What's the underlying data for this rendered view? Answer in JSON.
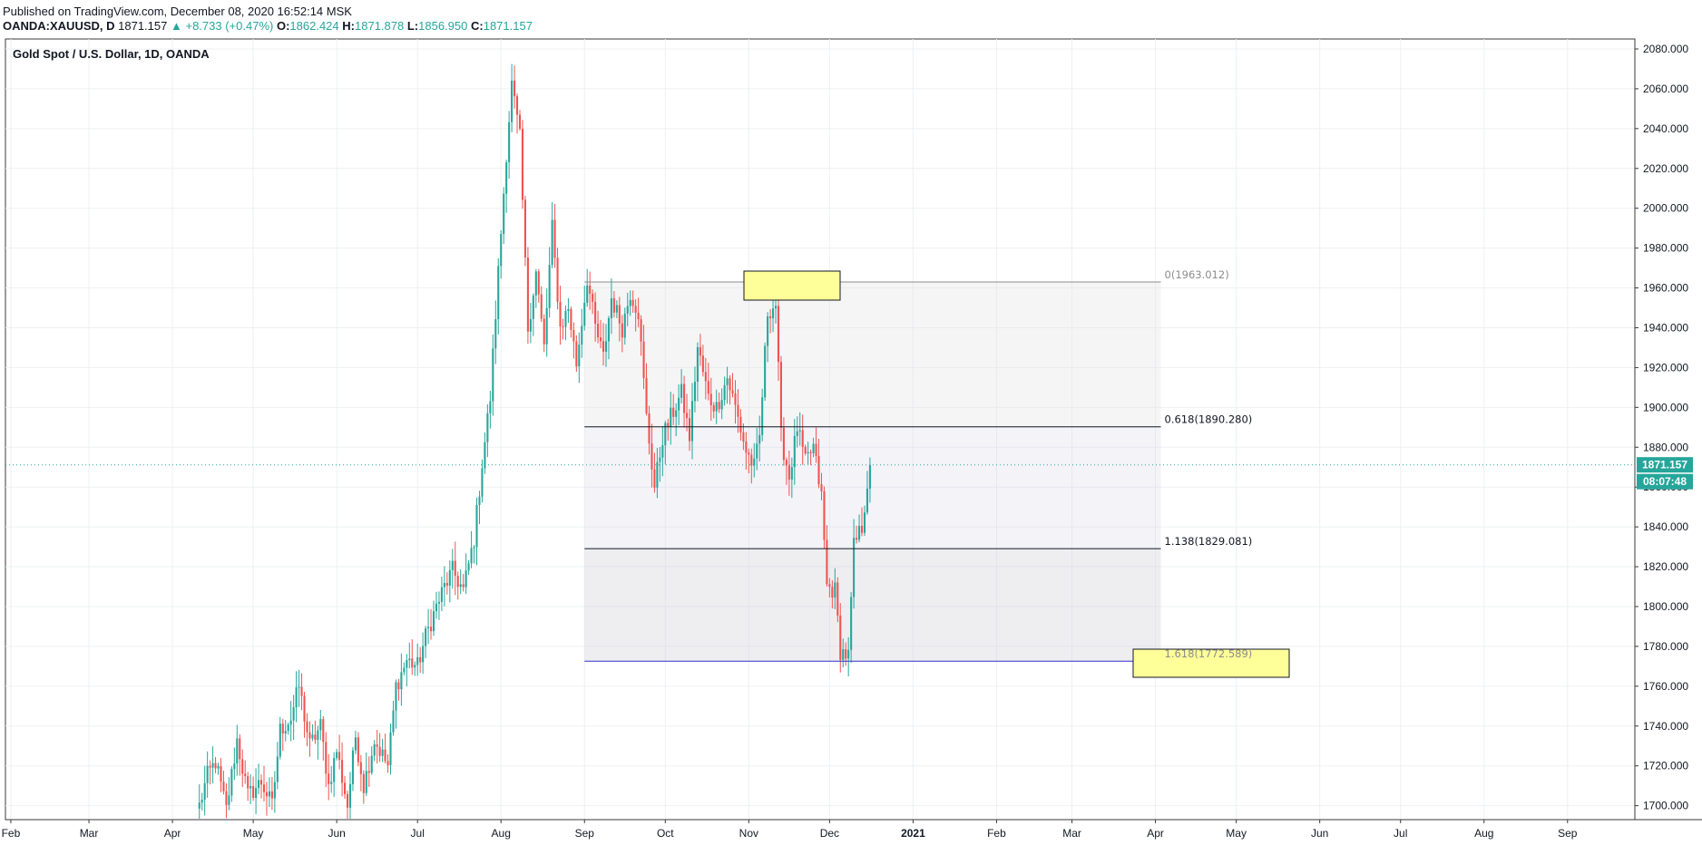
{
  "header": {
    "published": "Published on TradingView.com, December 08, 2020 16:52:14 MSK",
    "symbol": "OANDA:XAUUSD, D",
    "last": "1871.157",
    "arrow": "▲",
    "change": "+8.733 (+0.47%)",
    "open_label": "O:",
    "open": "1862.424",
    "high_label": "H:",
    "high": "1871.878",
    "low_label": "L:",
    "low": "1856.950",
    "close_label": "C:",
    "close": "1871.157"
  },
  "price_badge": "1871.157",
  "countdown_badge": "08:07:48",
  "colors": {
    "up": "#26a69a",
    "down": "#ef5350",
    "grid": "#eef0f3",
    "fib_blue": "#3030c8",
    "highlight": "#ffff99"
  },
  "chart_data": {
    "type": "candlestick",
    "title": "Gold Spot / U.S. Dollar, 1D, OANDA",
    "y_ticks": [
      "2080.000",
      "2060.000",
      "2040.000",
      "2020.000",
      "2000.000",
      "1980.000",
      "1960.000",
      "1940.000",
      "1920.000",
      "1900.000",
      "1880.000",
      "1860.000",
      "1840.000",
      "1820.000",
      "1800.000",
      "1780.000",
      "1760.000",
      "1740.000",
      "1720.000",
      "1700.000"
    ],
    "ylim": [
      1693,
      2085
    ],
    "x_ticks": [
      {
        "label": "Feb",
        "day": 0
      },
      {
        "label": "Mar",
        "day": 29
      },
      {
        "label": "Apr",
        "day": 60
      },
      {
        "label": "May",
        "day": 90
      },
      {
        "label": "Jun",
        "day": 121
      },
      {
        "label": "Jul",
        "day": 151
      },
      {
        "label": "Aug",
        "day": 182
      },
      {
        "label": "Sep",
        "day": 213
      },
      {
        "label": "Oct",
        "day": 243
      },
      {
        "label": "Nov",
        "day": 274
      },
      {
        "label": "Dec",
        "day": 304
      },
      {
        "label": "2021",
        "day": 335
      },
      {
        "label": "Feb",
        "day": 366
      },
      {
        "label": "Mar",
        "day": 394
      },
      {
        "label": "Apr",
        "day": 425
      },
      {
        "label": "May",
        "day": 455
      },
      {
        "label": "Jun",
        "day": 486
      },
      {
        "label": "Jul",
        "day": 516
      },
      {
        "label": "Aug",
        "day": 547
      },
      {
        "label": "Sep",
        "day": 578
      }
    ],
    "xlim_days": [
      -2,
      603
    ],
    "candle_anchors": [
      {
        "day": 70,
        "price": 1700
      },
      {
        "day": 73,
        "price": 1715
      },
      {
        "day": 76,
        "price": 1722
      },
      {
        "day": 80,
        "price": 1698
      },
      {
        "day": 84,
        "price": 1733
      },
      {
        "day": 88,
        "price": 1705
      },
      {
        "day": 93,
        "price": 1712
      },
      {
        "day": 97,
        "price": 1700
      },
      {
        "day": 100,
        "price": 1738
      },
      {
        "day": 104,
        "price": 1744
      },
      {
        "day": 107,
        "price": 1760
      },
      {
        "day": 111,
        "price": 1730
      },
      {
        "day": 115,
        "price": 1740
      },
      {
        "day": 118,
        "price": 1710
      },
      {
        "day": 121,
        "price": 1728
      },
      {
        "day": 125,
        "price": 1700
      },
      {
        "day": 128,
        "price": 1735
      },
      {
        "day": 131,
        "price": 1710
      },
      {
        "day": 135,
        "price": 1733
      },
      {
        "day": 140,
        "price": 1720
      },
      {
        "day": 143,
        "price": 1760
      },
      {
        "day": 147,
        "price": 1773
      },
      {
        "day": 151,
        "price": 1770
      },
      {
        "day": 154,
        "price": 1785
      },
      {
        "day": 158,
        "price": 1800
      },
      {
        "day": 161,
        "price": 1810
      },
      {
        "day": 164,
        "price": 1818
      },
      {
        "day": 168,
        "price": 1808
      },
      {
        "day": 172,
        "price": 1834
      },
      {
        "day": 175,
        "price": 1872
      },
      {
        "day": 178,
        "price": 1905
      },
      {
        "day": 181,
        "price": 1968
      },
      {
        "day": 184,
        "price": 2028
      },
      {
        "day": 186,
        "price": 2062
      },
      {
        "day": 189,
        "price": 2035
      },
      {
        "day": 192,
        "price": 1940
      },
      {
        "day": 195,
        "price": 1968
      },
      {
        "day": 198,
        "price": 1930
      },
      {
        "day": 201,
        "price": 1990
      },
      {
        "day": 204,
        "price": 1940
      },
      {
        "day": 207,
        "price": 1950
      },
      {
        "day": 210,
        "price": 1922
      },
      {
        "day": 214,
        "price": 1965
      },
      {
        "day": 217,
        "price": 1940
      },
      {
        "day": 220,
        "price": 1925
      },
      {
        "day": 223,
        "price": 1955
      },
      {
        "day": 227,
        "price": 1940
      },
      {
        "day": 230,
        "price": 1958
      },
      {
        "day": 233,
        "price": 1948
      },
      {
        "day": 236,
        "price": 1895
      },
      {
        "day": 239,
        "price": 1860
      },
      {
        "day": 242,
        "price": 1885
      },
      {
        "day": 245,
        "price": 1895
      },
      {
        "day": 249,
        "price": 1907
      },
      {
        "day": 252,
        "price": 1885
      },
      {
        "day": 255,
        "price": 1930
      },
      {
        "day": 259,
        "price": 1905
      },
      {
        "day": 262,
        "price": 1900
      },
      {
        "day": 266,
        "price": 1915
      },
      {
        "day": 269,
        "price": 1900
      },
      {
        "day": 273,
        "price": 1878
      },
      {
        "day": 276,
        "price": 1870
      },
      {
        "day": 278,
        "price": 1885
      },
      {
        "day": 281,
        "price": 1948
      },
      {
        "day": 284,
        "price": 1952
      },
      {
        "day": 286,
        "price": 1885
      },
      {
        "day": 289,
        "price": 1865
      },
      {
        "day": 292,
        "price": 1890
      },
      {
        "day": 295,
        "price": 1872
      },
      {
        "day": 298,
        "price": 1880
      },
      {
        "day": 301,
        "price": 1855
      },
      {
        "day": 303,
        "price": 1810
      },
      {
        "day": 306,
        "price": 1808
      },
      {
        "day": 308,
        "price": 1778
      },
      {
        "day": 311,
        "price": 1775
      },
      {
        "day": 313,
        "price": 1830
      },
      {
        "day": 316,
        "price": 1840
      },
      {
        "day": 318,
        "price": 1862
      },
      {
        "day": 319,
        "price": 1871
      }
    ],
    "fib_levels": [
      {
        "label": "0(1963.012)",
        "price": 1963.012,
        "color": "#8c8c8c"
      },
      {
        "label": "0.618(1890.280)",
        "price": 1890.28,
        "color": "#131722"
      },
      {
        "label": "1.138(1829.081)",
        "price": 1829.081,
        "color": "#131722"
      },
      {
        "label": "1.618(1772.589)",
        "price": 1772.589,
        "color": "#8c8c8c"
      }
    ],
    "fib_range_days": [
      213,
      427
    ],
    "last_price": 1871.157
  }
}
